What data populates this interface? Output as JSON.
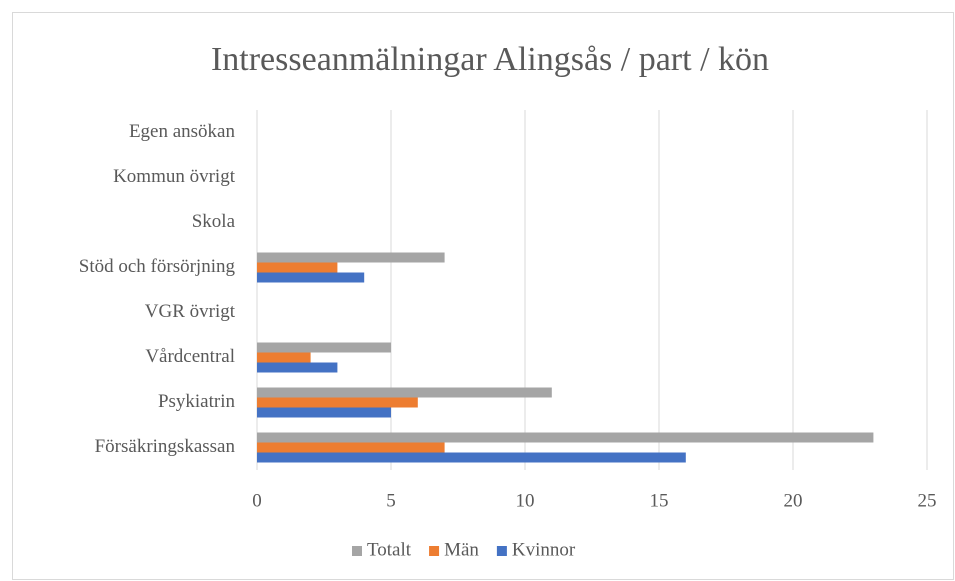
{
  "chart_data": {
    "type": "hbar",
    "title": "Intresseanmälningar Alingsås / part / kön",
    "categories": [
      "Försäkringskassan",
      "Psykiatrin",
      "Vårdcentral",
      "VGR övrigt",
      "Stöd och försörjning",
      "Skola",
      "Kommun övrigt",
      "Egen ansökan"
    ],
    "series": [
      {
        "name": "Kvinnor",
        "color": "#4472c4",
        "values": [
          16,
          5,
          3,
          0,
          4,
          0,
          0,
          0
        ]
      },
      {
        "name": "Män",
        "color": "#ed7d31",
        "values": [
          7,
          6,
          2,
          0,
          3,
          0,
          0,
          0
        ]
      },
      {
        "name": "Totalt",
        "color": "#a5a5a5",
        "values": [
          23,
          11,
          5,
          0,
          7,
          0,
          0,
          0
        ]
      }
    ],
    "xlim": [
      0,
      25
    ],
    "xticks": [
      0,
      5,
      10,
      15,
      20,
      25
    ],
    "grid": true,
    "legend": "bottom"
  }
}
